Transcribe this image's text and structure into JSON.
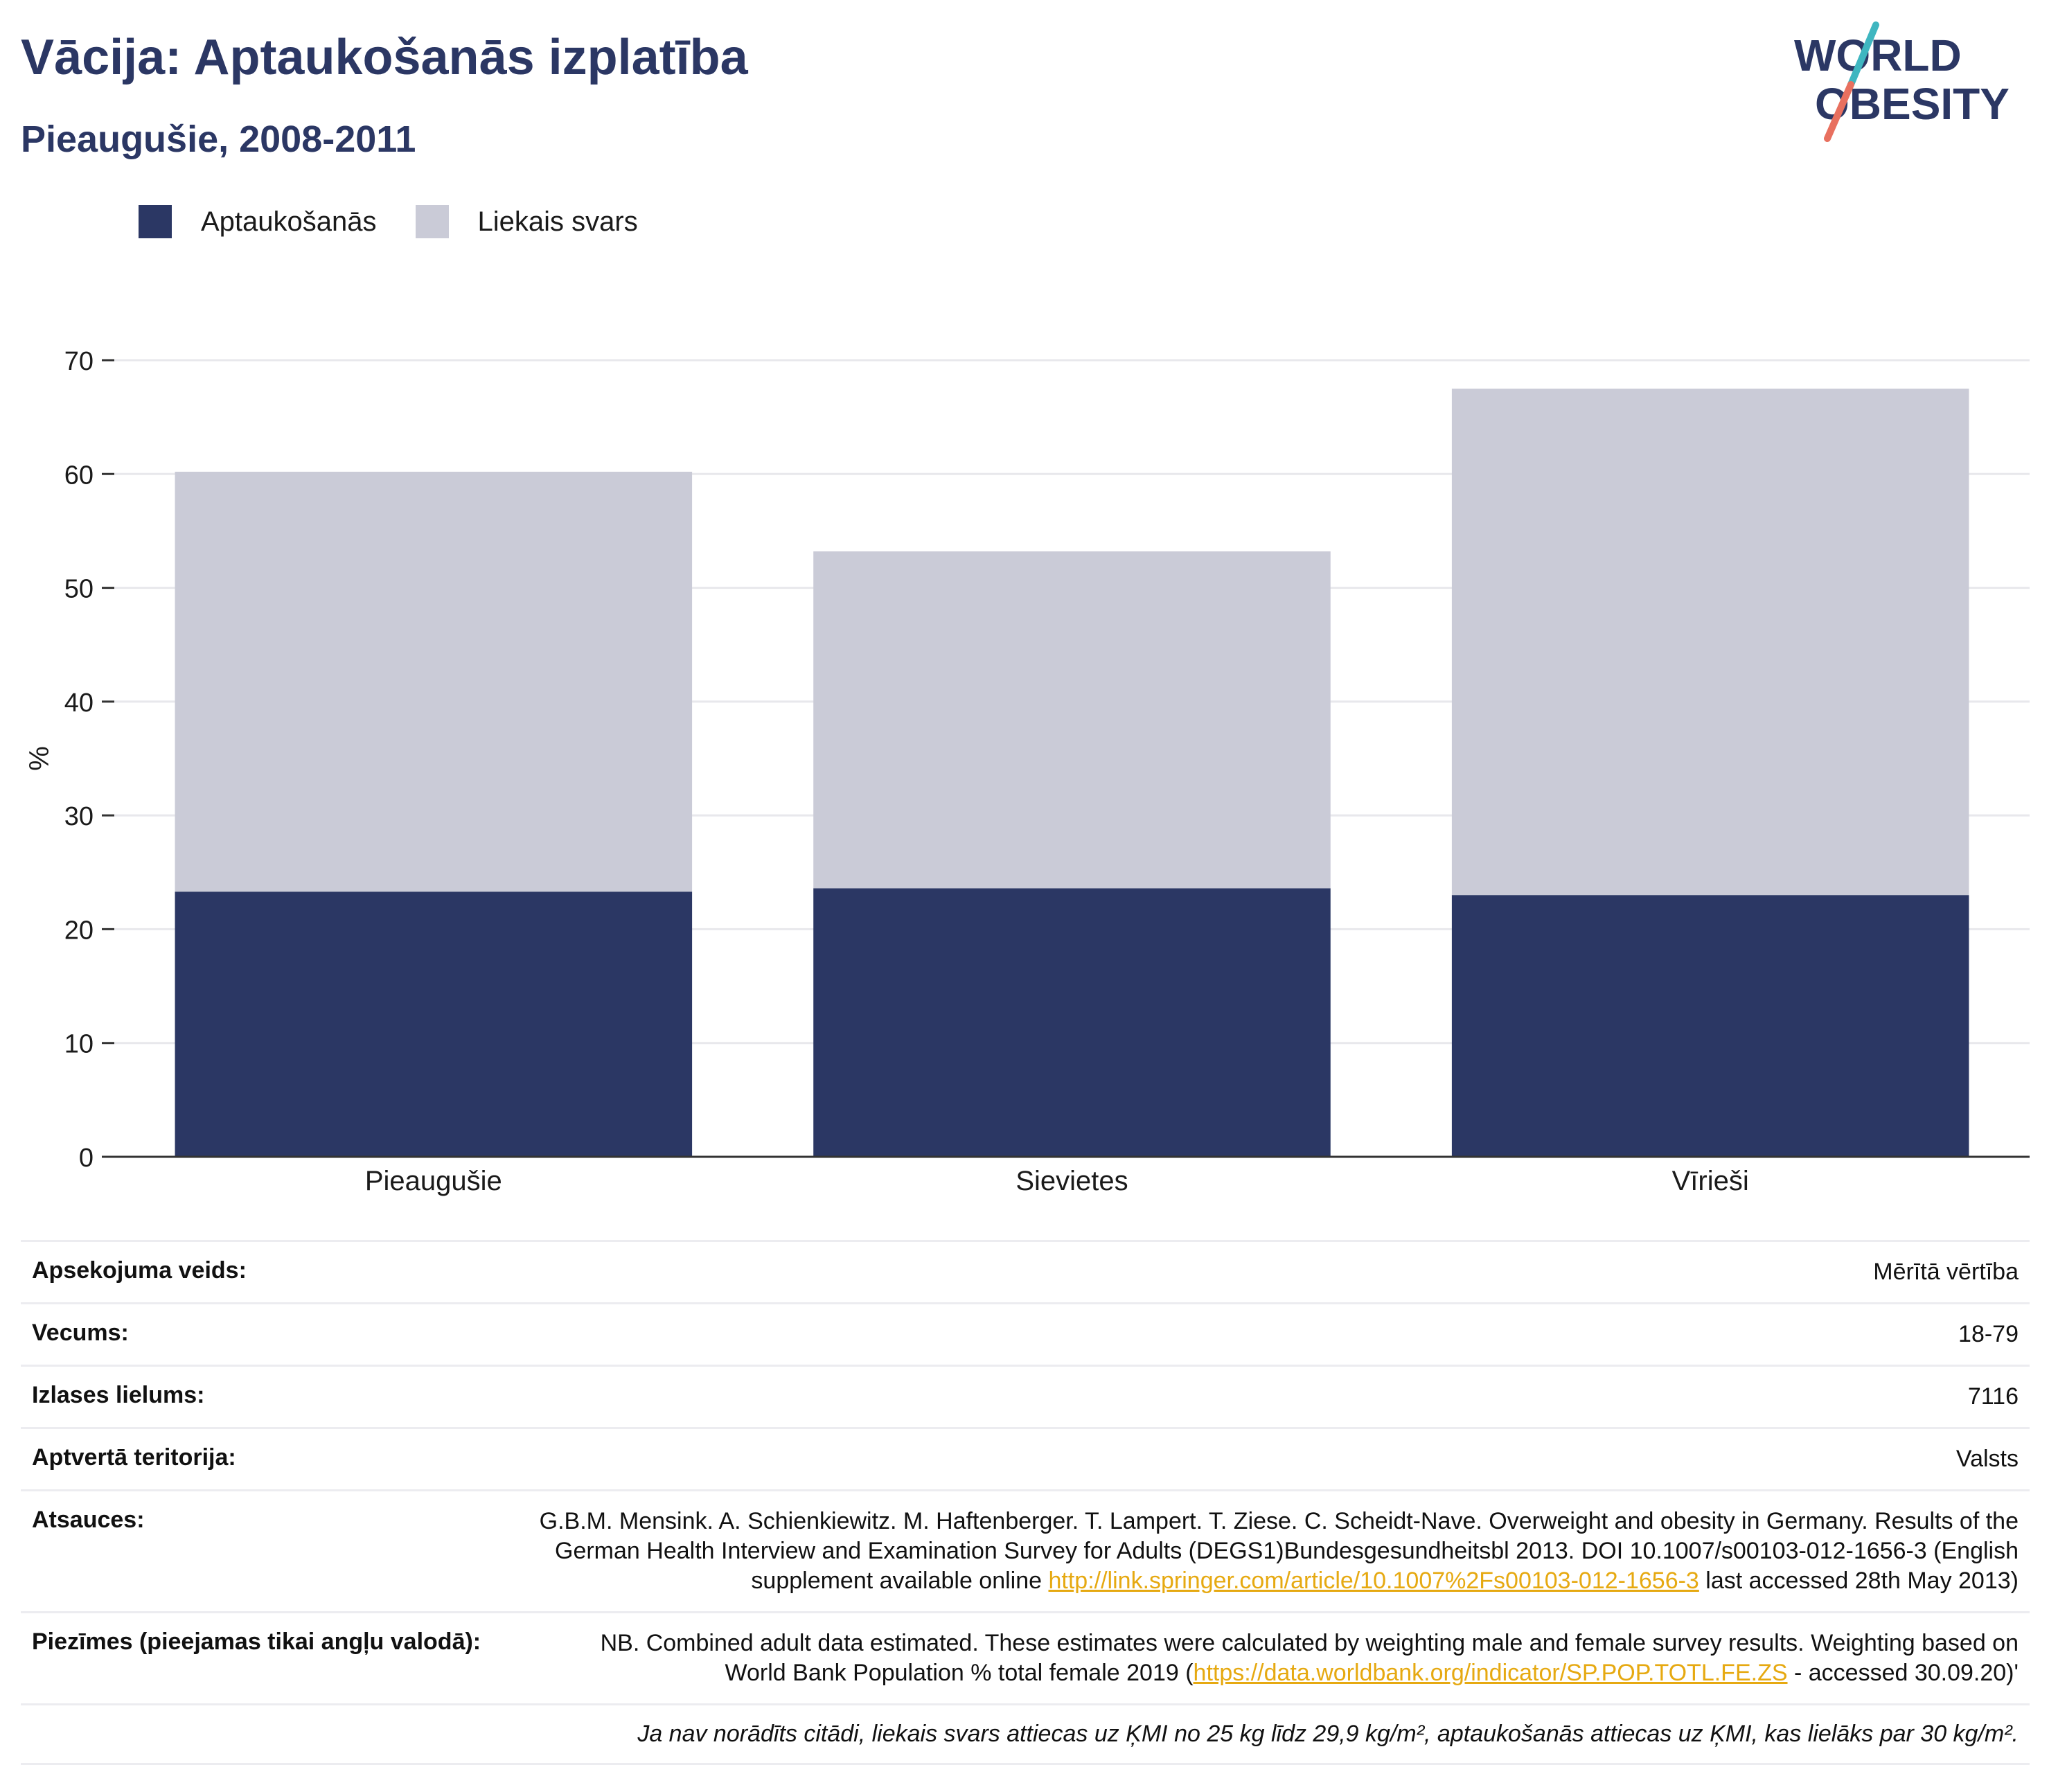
{
  "header": {
    "title": "Vācija: Aptaukošanās izplatība",
    "subtitle": "Pieaugušie, 2008-2011"
  },
  "logo": {
    "line1": "WORLD",
    "line2": "OBESITY",
    "colors": {
      "text": "#2b3764",
      "slash_top": "#3fb6c0",
      "slash_bottom": "#e8705f"
    }
  },
  "colors": {
    "obesity": "#2b3764",
    "overweight": "#cacbd7",
    "title": "#2b3764",
    "link": "#e6a911"
  },
  "chart_data": {
    "type": "bar",
    "stacked": true,
    "categories": [
      "Pieaugušie",
      "Sievietes",
      "Vīrieši"
    ],
    "series": [
      {
        "name": "Aptaukošanās",
        "values": [
          23.3,
          23.6,
          23.0
        ]
      },
      {
        "name": "Liekais svars",
        "values": [
          36.9,
          29.6,
          44.5
        ]
      }
    ],
    "ylabel": "%",
    "xlabel": "",
    "ylim": [
      0,
      70
    ],
    "yticks": [
      0,
      10,
      20,
      30,
      40,
      50,
      60,
      70
    ],
    "grid": true,
    "legend_position": "top-left"
  },
  "meta": {
    "survey_type": {
      "label": "Apsekojuma veids:",
      "value": "Mērītā vērtība"
    },
    "age": {
      "label": "Vecums:",
      "value": "18-79"
    },
    "sample_size": {
      "label": "Izlases lielums:",
      "value": "7116"
    },
    "area": {
      "label": "Aptvertā teritorija:",
      "value": "Valsts"
    },
    "references": {
      "label": "Atsauces:",
      "text_before": "G.B.M. Mensink. A. Schienkiewitz. M. Haftenberger. T. Lampert. T. Ziese. C. Scheidt-Nave. Overweight and obesity in Germany. Results of the German Health Interview and Examination Survey for Adults (DEGS1)Bundesgesundheitsbl 2013. DOI 10.1007/s00103-012-1656-3 (English supplement available online ",
      "link": "http://link.springer.com/article/10.1007%2Fs00103-012-1656-3",
      "text_after": " last accessed 28th May 2013)"
    },
    "notes": {
      "label": "Piezīmes (pieejamas tikai angļu valodā):",
      "text_before": "NB. Combined adult data estimated. These estimates were calculated by weighting male and female survey results. Weighting based on World Bank Population % total female 2019 (",
      "link": "https://data.worldbank.org/indicator/SP.POP.TOTL.FE.ZS",
      "text_after": " - accessed 30.09.20)'"
    },
    "footnote": "Ja nav norādīts citādi, liekais svars attiecas uz ĶMI no 25 kg līdz 29,9 kg/m², aptaukošanās attiecas uz ĶMI, kas lielāks par 30 kg/m²."
  }
}
